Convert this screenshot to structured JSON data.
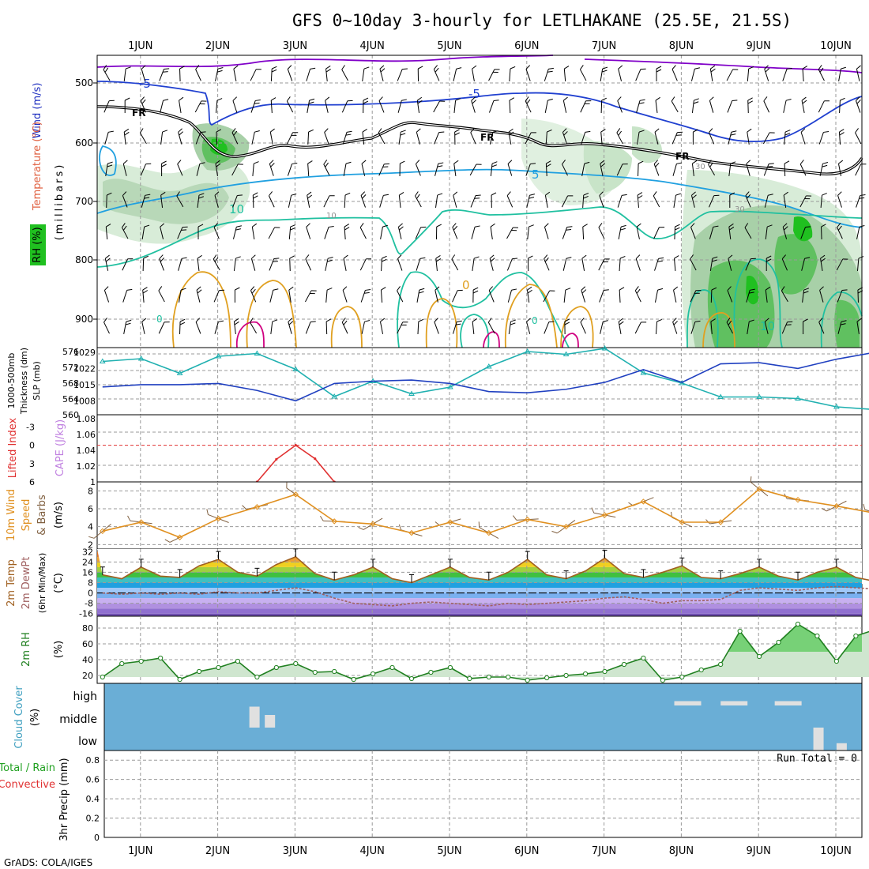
{
  "title": "GFS 0~10day 3-hourly for LETLHAKANE (25.5E, 21.5S)",
  "credit": "GrADS: COLA/IGES",
  "days": [
    "1JUN",
    "2JUN",
    "3JUN",
    "4JUN",
    "5JUN",
    "6JUN",
    "7JUN",
    "8JUN",
    "9JUN",
    "10JUN"
  ],
  "colors": {
    "grid": "#9a9a9a",
    "purple": "#8000c8",
    "blue": "#2040d0",
    "cyan": "#20a0e0",
    "teal": "#20c0a0",
    "orange": "#e0a020",
    "magenta": "#d00080",
    "freezing": "#000000",
    "slp": "#2040c0",
    "thickness": "#20b0b0",
    "cape": "#c080e0",
    "li": "#e03030",
    "wind": "#e09020",
    "barb": "#806040",
    "temp": "#a06020",
    "dew": "#a06060",
    "rh": "#208020",
    "cloud_bg": "#6aaed6",
    "precip": "#20c020"
  },
  "panels": {
    "upper_air": {
      "ylabel_wind": "Wind (m/s)",
      "ylabel_temp": "Temperature (°C)",
      "ylabel_rh": "RH (%)",
      "ylabel_units": "(millibars)",
      "yticks": [
        "500",
        "600",
        "700",
        "800",
        "900"
      ],
      "contour_labels": {
        "m5a": "-5",
        "m5b": "-5",
        "fr1": "FR",
        "fr2": "FR",
        "fr3": "FR",
        "p5": "5",
        "p10a": "10",
        "p10b": "10",
        "p0a": "0",
        "p0b": "0",
        "p0c": "0",
        "rh10": "10",
        "rh30a": "30",
        "rh30b": "30"
      }
    },
    "slp": {
      "ylabel_left": "1000-500mb",
      "ylabel_left2": "Thickness (dm)",
      "ylabel_right": "SLP (mb)",
      "yticks_left": [
        "576",
        "572",
        "568",
        "564",
        "560"
      ],
      "yticks_right": [
        "1029",
        "1022",
        "1015",
        "1008"
      ]
    },
    "instability": {
      "ylabel_li": "Lifted Index",
      "ylabel_cape": "CAPE (J/kg)",
      "yticks_li": [
        "-3",
        "0",
        "3",
        "6"
      ],
      "yticks_cape": [
        "1.08",
        "1.06",
        "1.04",
        "1.02",
        "1"
      ]
    },
    "wind10m": {
      "ylabel": "10m Wind",
      "ylabel2": "Speed",
      "ylabel3": "& Barbs",
      "ylabel_units": "(m/s)",
      "yticks": [
        "8",
        "6",
        "4",
        "2"
      ]
    },
    "temperature": {
      "ylabel": "2m Temp",
      "ylabel2": "2m DewPt",
      "ylabel3": "(6hr Min/Max)",
      "ylabel_units": "(°C)",
      "yticks": [
        "32",
        "24",
        "16",
        "8",
        "0",
        "-8",
        "-16"
      ]
    },
    "rh2m": {
      "ylabel": "2m RH",
      "ylabel_units": "(%)",
      "yticks": [
        "80",
        "60",
        "40",
        "20"
      ]
    },
    "cloud": {
      "ylabel": "Cloud Cover",
      "ylabel_units": "(%)",
      "levels": [
        "high",
        "middle",
        "low"
      ]
    },
    "precip": {
      "ylabel": "3hr Precip (mm)",
      "ylabel_total": "Total / Rain",
      "ylabel_conv": "Convective",
      "yticks": [
        "0.8",
        "0.6",
        "0.4",
        "0.2",
        "0"
      ],
      "run_total": "Run Total = 0"
    }
  },
  "chart_data": [
    {
      "type": "line",
      "name": "1000-500mb thickness and SLP",
      "x_days": [
        0,
        0.5,
        1,
        1.5,
        2,
        2.5,
        3,
        3.5,
        4,
        4.5,
        5,
        5.5,
        6,
        6.5,
        7,
        7.5,
        8,
        8.5,
        9,
        9.5,
        10,
        10.2
      ],
      "series": [
        {
          "name": "Thickness (dm)",
          "values": [
            573.5,
            574.2,
            570.5,
            574.8,
            575.5,
            571.5,
            564.6,
            568.5,
            565.3,
            567.0,
            572.2,
            576.0,
            575.3,
            576.8,
            570.6,
            568.0,
            564.5,
            564.5,
            564.1,
            562.0,
            561.3,
            562.0
          ]
        },
        {
          "name": "SLP (mb)",
          "values": [
            1014,
            1015,
            1015,
            1015.5,
            1012.5,
            1008,
            1015.5,
            1016.5,
            1017,
            1015.5,
            1012,
            1011.5,
            1013,
            1016,
            1021.5,
            1016,
            1024,
            1024.5,
            1022,
            1026,
            1029,
            1030
          ]
        }
      ]
    },
    {
      "type": "line",
      "name": "Lifted Index / CAPE",
      "series": [
        {
          "name": "Lifted Index",
          "x_days": [
            2.0,
            2.25,
            2.5,
            2.75,
            3.0
          ],
          "values": [
            6,
            2.3,
            0,
            2.2,
            6
          ]
        }
      ],
      "ylim_li": [
        6,
        -5
      ],
      "ylim_cape": [
        1,
        1.08
      ]
    },
    {
      "type": "line",
      "name": "10m Wind Speed (m/s)",
      "x_days": [
        0,
        0.5,
        1,
        1.5,
        2,
        2.5,
        3,
        3.5,
        4,
        4.5,
        5,
        5.5,
        6,
        6.5,
        7,
        7.5,
        8,
        8.5,
        9,
        9.5,
        10,
        10.3
      ],
      "values": [
        3.5,
        4.5,
        2.8,
        4.9,
        6.2,
        7.6,
        4.6,
        4.3,
        3.3,
        4.5,
        3.3,
        4.8,
        4.0,
        5.3,
        6.8,
        4.5,
        4.5,
        8.2,
        7.0,
        6.3,
        5.5,
        5.0
      ],
      "ylim": [
        1.5,
        9
      ]
    },
    {
      "type": "area",
      "name": "2m Temperature / Dew Point (°C)",
      "x_days": [
        0,
        0.25,
        0.5,
        0.75,
        1,
        1.25,
        1.5,
        1.75,
        2,
        2.25,
        2.5,
        2.75,
        3,
        3.25,
        3.5,
        3.75,
        4,
        4.25,
        4.5,
        4.75,
        5,
        5.25,
        5.5,
        5.75,
        6,
        6.25,
        6.5,
        6.75,
        7,
        7.25,
        7.5,
        7.75,
        8,
        8.25,
        8.5,
        8.75,
        9,
        9.25,
        9.5,
        9.75,
        10,
        10.3
      ],
      "series": [
        {
          "name": "2m Temp",
          "values": [
            14,
            11,
            20,
            13,
            12,
            21,
            26,
            16,
            13,
            22,
            28,
            15,
            10,
            14,
            20,
            11,
            8,
            14,
            20,
            12,
            10,
            16,
            26,
            14,
            11,
            17,
            27,
            15,
            12,
            16,
            21,
            12,
            11,
            15,
            20,
            13,
            10,
            16,
            20,
            12,
            9,
            7
          ]
        },
        {
          "name": "2m DewPt",
          "values": [
            0,
            -1,
            0,
            -1,
            0,
            -1,
            1,
            0,
            0,
            2,
            4,
            1,
            -4,
            -8,
            -9,
            -10,
            -8,
            -7,
            -8,
            -9,
            -10,
            -8,
            -9,
            -8,
            -7,
            -6,
            -4,
            -3,
            -5,
            -8,
            -6,
            -6,
            -5,
            2,
            4,
            3,
            2,
            4,
            5,
            4,
            3,
            2
          ]
        }
      ],
      "ylim": [
        -16,
        32
      ]
    },
    {
      "type": "area",
      "name": "2m RH (%)",
      "x_days": [
        0,
        0.25,
        0.5,
        0.75,
        1,
        1.25,
        1.5,
        1.75,
        2,
        2.25,
        2.5,
        2.75,
        3,
        3.25,
        3.5,
        3.75,
        4,
        4.25,
        4.5,
        4.75,
        5,
        5.25,
        5.5,
        5.75,
        6,
        6.25,
        6.5,
        6.75,
        7,
        7.25,
        7.5,
        7.75,
        8,
        8.25,
        8.5,
        8.75,
        9,
        9.25,
        9.5,
        9.75,
        10,
        10.3
      ],
      "values": [
        18,
        35,
        38,
        42,
        15,
        25,
        30,
        38,
        18,
        30,
        35,
        24,
        25,
        15,
        22,
        30,
        16,
        24,
        30,
        16,
        18,
        18,
        14,
        17,
        20,
        22,
        25,
        34,
        42,
        14,
        18,
        27,
        34,
        76,
        44,
        62,
        85,
        70,
        38,
        70,
        78,
        70
      ],
      "ylim": [
        10,
        90
      ]
    },
    {
      "type": "bar",
      "name": "Cloud Cover (%)",
      "series": [
        {
          "name": "high",
          "x_days": [
            7.4,
            8.0,
            8.7
          ],
          "values": [
            5,
            5,
            5
          ]
        },
        {
          "name": "middle",
          "x_days": [
            1.9,
            2.1
          ],
          "values": [
            35,
            20
          ]
        },
        {
          "name": "low",
          "x_days": [
            9.2,
            9.5
          ],
          "values": [
            80,
            10
          ]
        }
      ]
    },
    {
      "type": "bar",
      "name": "3hr Precip (mm)",
      "values": [],
      "ylim": [
        0,
        0.9
      ]
    }
  ]
}
